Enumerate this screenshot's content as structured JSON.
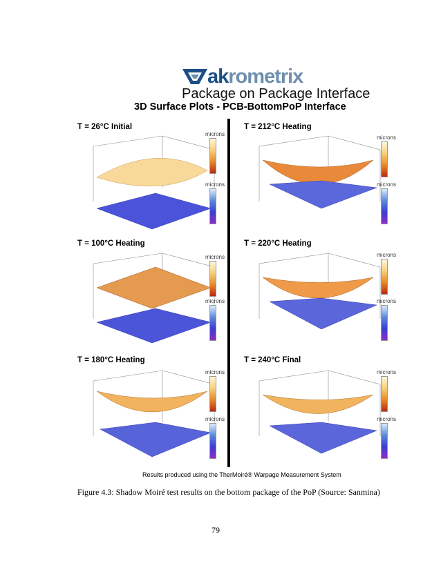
{
  "logo": {
    "part1": "ak",
    "part2": "rometrix"
  },
  "subtitle": "Package on Package Interface",
  "subtitle2": "3D Surface Plots - PCB-BottomPoP Interface",
  "colorbar_label": "microns",
  "panels": [
    {
      "title": "T = 26°C Initial"
    },
    {
      "title": "T = 212°C Heating"
    },
    {
      "title": "T = 100°C Heating"
    },
    {
      "title": "T = 220°C Heating"
    },
    {
      "title": "T = 180°C Heating"
    },
    {
      "title": "T = 240°C Final"
    }
  ],
  "footer_note": "Results produced using the TherMoiré® Warpage Measurement System",
  "caption": "Figure 4.3: Shadow Moiré test results on the bottom package of the PoP (Source: Sanmina)",
  "page_number": "79",
  "colors": {
    "warm_top": "#fef6dc",
    "warm_bottom": "#b82a12",
    "cool_top": "#d8ecff",
    "cool_bottom": "#8c2dc4",
    "logo_dark": "#1b4f86"
  }
}
